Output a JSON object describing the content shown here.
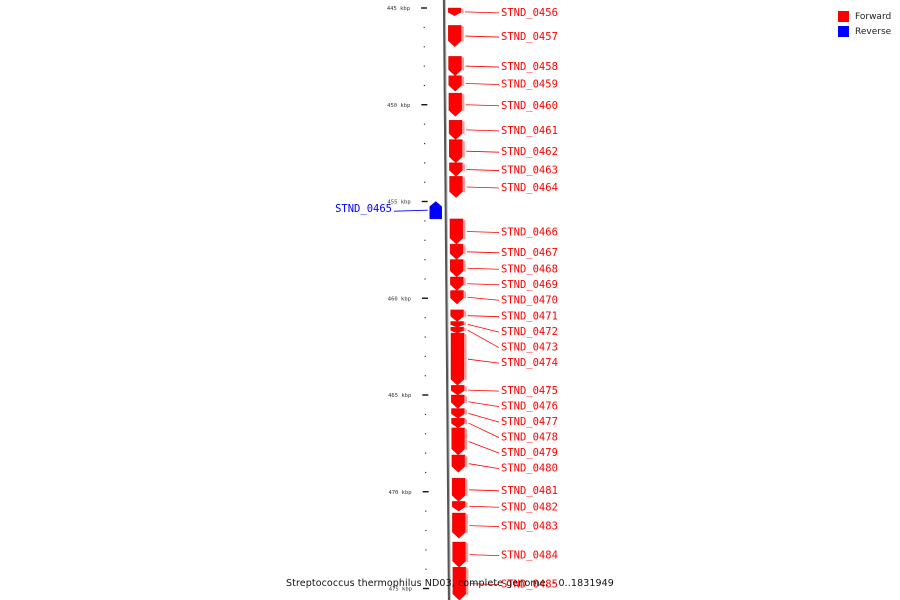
{
  "legend": {
    "forward_label": "Forward",
    "reverse_label": "Reverse",
    "forward_color": "#ff0000",
    "reverse_color": "#0000ff"
  },
  "caption": "Streptococcus thermophilus ND03, complete genome. - 0..1831949",
  "chart_data": {
    "type": "genome-map",
    "unit": "kbp",
    "range_kbp": [
      444.6,
      475.6
    ],
    "scale_ticks": [
      {
        "kbp": 445,
        "label": "445 kbp"
      },
      {
        "kbp": 450,
        "label": "450 kbp"
      },
      {
        "kbp": 455,
        "label": "455 kbp"
      },
      {
        "kbp": 460,
        "label": "460 kbp"
      },
      {
        "kbp": 465,
        "label": "465 kbp"
      },
      {
        "kbp": 470,
        "label": "470 kbp"
      },
      {
        "kbp": 475,
        "label": "475 kbp"
      }
    ],
    "genes": [
      {
        "name": "STND_0456",
        "strand": "forward",
        "start_kbp": 445.0,
        "end_kbp": 445.4
      },
      {
        "name": "STND_0457",
        "strand": "forward",
        "start_kbp": 445.9,
        "end_kbp": 447.0
      },
      {
        "name": "STND_0458",
        "strand": "forward",
        "start_kbp": 447.5,
        "end_kbp": 448.5
      },
      {
        "name": "STND_0459",
        "strand": "forward",
        "start_kbp": 448.5,
        "end_kbp": 449.3
      },
      {
        "name": "STND_0460",
        "strand": "forward",
        "start_kbp": 449.4,
        "end_kbp": 450.6
      },
      {
        "name": "STND_0461",
        "strand": "forward",
        "start_kbp": 450.8,
        "end_kbp": 451.8
      },
      {
        "name": "STND_0462",
        "strand": "forward",
        "start_kbp": 451.8,
        "end_kbp": 453.0
      },
      {
        "name": "STND_0463",
        "strand": "forward",
        "start_kbp": 453.0,
        "end_kbp": 453.7
      },
      {
        "name": "STND_0464",
        "strand": "forward",
        "start_kbp": 453.7,
        "end_kbp": 454.8
      },
      {
        "name": "STND_0465",
        "strand": "reverse",
        "start_kbp": 455.0,
        "end_kbp": 455.9
      },
      {
        "name": "STND_0466",
        "strand": "forward",
        "start_kbp": 455.9,
        "end_kbp": 457.2
      },
      {
        "name": "STND_0467",
        "strand": "forward",
        "start_kbp": 457.2,
        "end_kbp": 458.0
      },
      {
        "name": "STND_0468",
        "strand": "forward",
        "start_kbp": 458.0,
        "end_kbp": 458.9
      },
      {
        "name": "STND_0469",
        "strand": "forward",
        "start_kbp": 458.9,
        "end_kbp": 459.6
      },
      {
        "name": "STND_0470",
        "strand": "forward",
        "start_kbp": 459.6,
        "end_kbp": 460.3
      },
      {
        "name": "STND_0471",
        "strand": "forward",
        "start_kbp": 460.6,
        "end_kbp": 461.2
      },
      {
        "name": "STND_0472",
        "strand": "forward",
        "start_kbp": 461.2,
        "end_kbp": 461.5
      },
      {
        "name": "STND_0473",
        "strand": "forward",
        "start_kbp": 461.5,
        "end_kbp": 461.8
      },
      {
        "name": "STND_0474",
        "strand": "forward",
        "start_kbp": 461.8,
        "end_kbp": 464.5
      },
      {
        "name": "STND_0475",
        "strand": "forward",
        "start_kbp": 464.5,
        "end_kbp": 465.0
      },
      {
        "name": "STND_0476",
        "strand": "forward",
        "start_kbp": 465.0,
        "end_kbp": 465.7
      },
      {
        "name": "STND_0477",
        "strand": "forward",
        "start_kbp": 465.7,
        "end_kbp": 466.2
      },
      {
        "name": "STND_0478",
        "strand": "forward",
        "start_kbp": 466.2,
        "end_kbp": 466.7
      },
      {
        "name": "STND_0479",
        "strand": "forward",
        "start_kbp": 466.7,
        "end_kbp": 468.1
      },
      {
        "name": "STND_0480",
        "strand": "forward",
        "start_kbp": 468.1,
        "end_kbp": 469.0
      },
      {
        "name": "STND_0481",
        "strand": "forward",
        "start_kbp": 469.3,
        "end_kbp": 470.5
      },
      {
        "name": "STND_0482",
        "strand": "forward",
        "start_kbp": 470.5,
        "end_kbp": 471.0
      },
      {
        "name": "STND_0483",
        "strand": "forward",
        "start_kbp": 471.1,
        "end_kbp": 472.4
      },
      {
        "name": "STND_0484",
        "strand": "forward",
        "start_kbp": 472.6,
        "end_kbp": 473.9
      },
      {
        "name": "STND_0485",
        "strand": "forward",
        "start_kbp": 473.9,
        "end_kbp": 475.6
      }
    ]
  }
}
